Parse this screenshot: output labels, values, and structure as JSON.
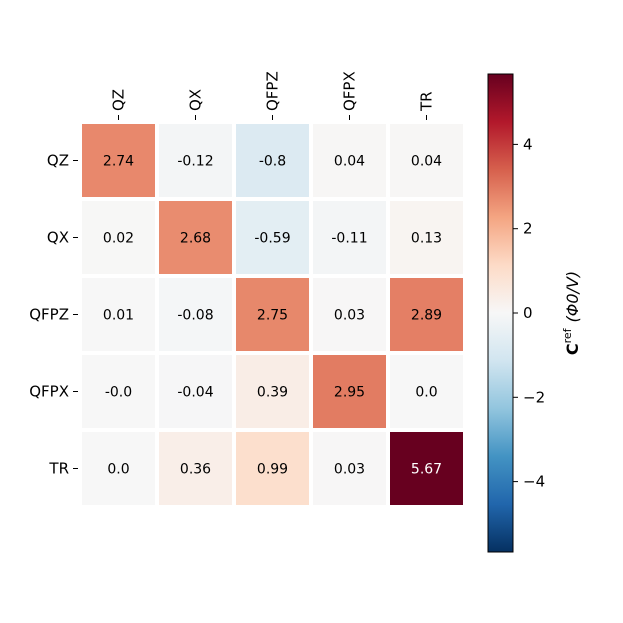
{
  "chart_data": {
    "type": "heatmap",
    "rows": [
      "QZ",
      "QX",
      "QFPZ",
      "QFPX",
      "TR"
    ],
    "columns": [
      "QZ",
      "QX",
      "QFPZ",
      "QFPX",
      "TR"
    ],
    "values": [
      [
        2.74,
        -0.12,
        -0.8,
        0.04,
        0.04
      ],
      [
        0.02,
        2.68,
        -0.59,
        -0.11,
        0.13
      ],
      [
        0.01,
        -0.08,
        2.75,
        0.03,
        2.89
      ],
      [
        -0.0,
        -0.04,
        0.39,
        2.95,
        0.0
      ],
      [
        0.0,
        0.36,
        0.99,
        0.03,
        5.67
      ]
    ],
    "cell_labels": [
      [
        "2.74",
        "-0.12",
        "-0.8",
        "0.04",
        "0.04"
      ],
      [
        "0.02",
        "2.68",
        "-0.59",
        "-0.11",
        "0.13"
      ],
      [
        "0.01",
        "-0.08",
        "2.75",
        "0.03",
        "2.89"
      ],
      [
        "-0.0",
        "-0.04",
        "0.39",
        "2.95",
        "0.0"
      ],
      [
        "0.0",
        "0.36",
        "0.99",
        "0.03",
        "5.67"
      ]
    ],
    "colormap": "RdBu_r",
    "vmin": -5.67,
    "vmax": 5.67,
    "colorbar": {
      "label": "C^ref (Φ0/V)",
      "label_main": "C",
      "label_sup": "ref",
      "label_units": "(Φ0/V)",
      "ticks": [
        4,
        2,
        0,
        -2,
        -4
      ],
      "tick_labels": [
        "4",
        "2",
        "0",
        "−2",
        "−4"
      ]
    },
    "x_axis_position": "top"
  }
}
